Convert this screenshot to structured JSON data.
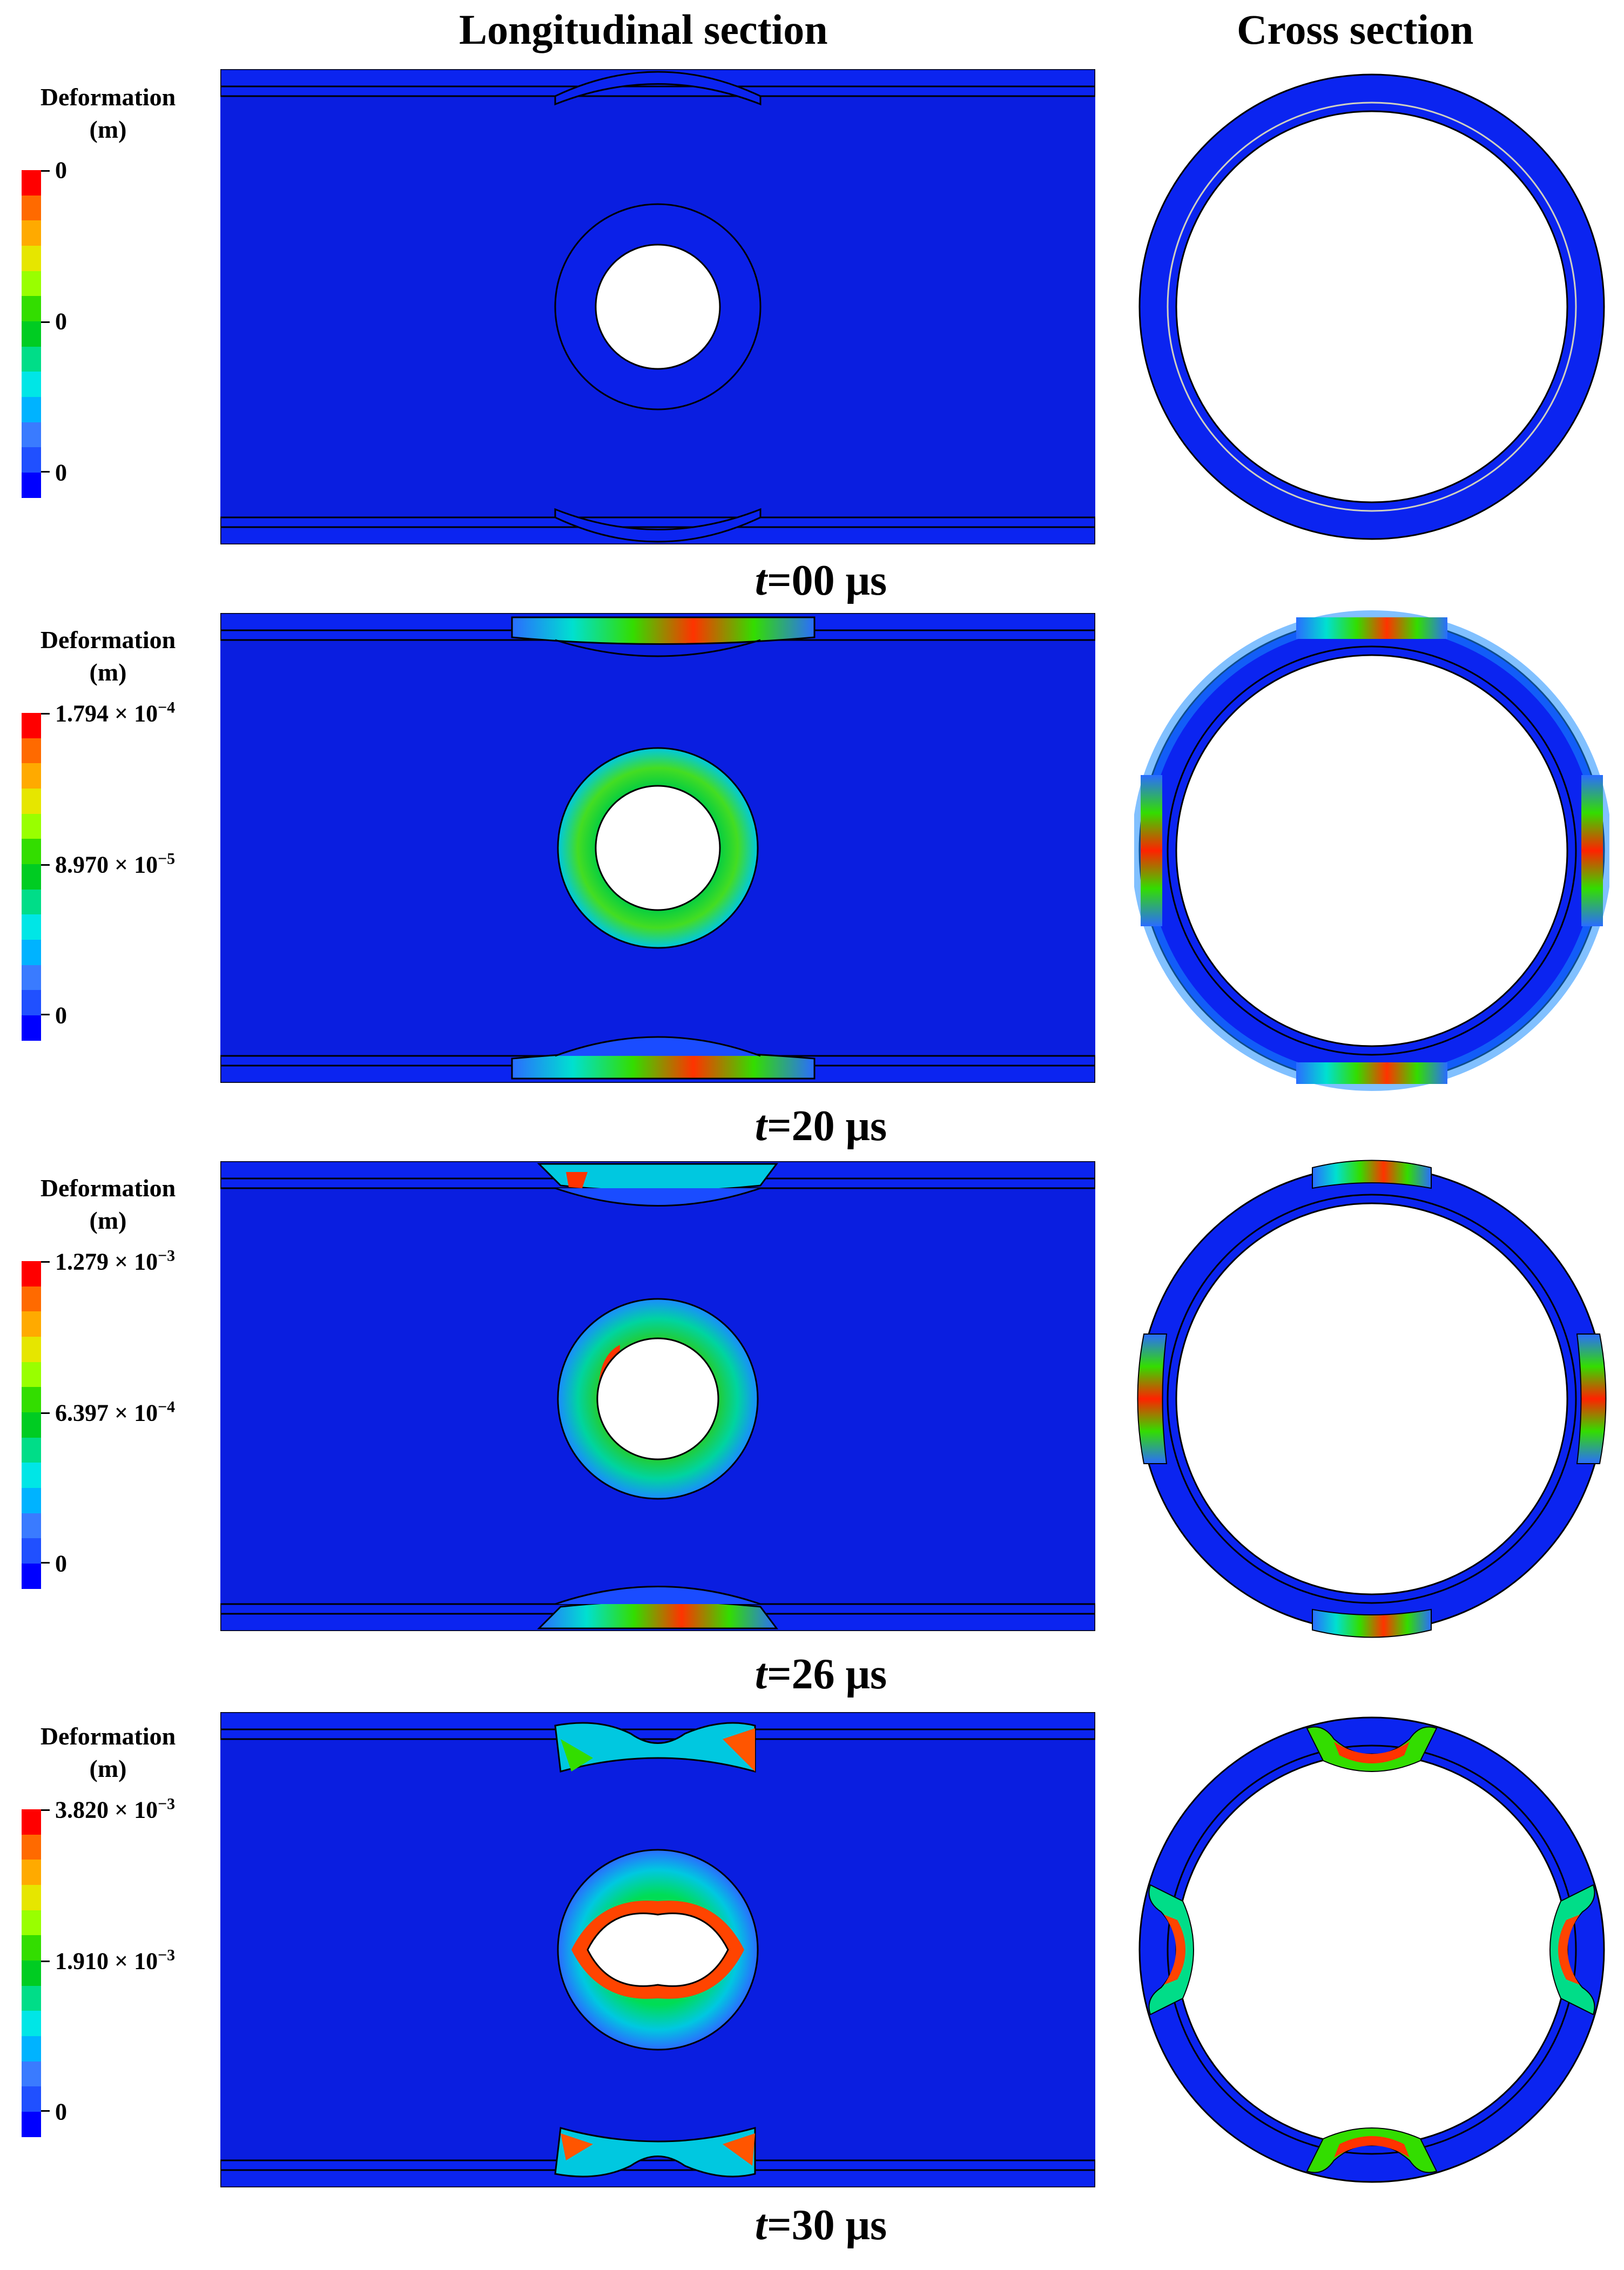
{
  "headers": {
    "longitudinal": "Longitudinal section",
    "cross": "Cross section"
  },
  "colorbar": {
    "colors": [
      "#ff0000",
      "#ff6a00",
      "#ffaa00",
      "#e6e600",
      "#99ff00",
      "#33dd00",
      "#00cc22",
      "#00dd88",
      "#00e6e6",
      "#00b3ff",
      "#3a7bff",
      "#2050ff",
      "#0000ff"
    ]
  },
  "frames": [
    {
      "time": "00 μs",
      "time_prefix": "t",
      "legend_title_1": "Deformation",
      "legend_title_2": "(m)",
      "max_label": "0",
      "mid_label": "0",
      "min_label": "0"
    },
    {
      "time": "20 μs",
      "time_prefix": "t",
      "legend_title_1": "Deformation",
      "legend_title_2": "(m)",
      "max_label": "1.794 × 10",
      "max_exp": "−4",
      "mid_label": "8.970 × 10",
      "mid_exp": "−5",
      "min_label": "0"
    },
    {
      "time": "26 μs",
      "time_prefix": "t",
      "legend_title_1": "Deformation",
      "legend_title_2": "(m)",
      "max_label": "1.279 × 10",
      "max_exp": "−3",
      "mid_label": "6.397 × 10",
      "mid_exp": "−4",
      "min_label": "0"
    },
    {
      "time": "30 μs",
      "time_prefix": "t",
      "legend_title_1": "Deformation",
      "legend_title_2": "(m)",
      "max_label": "3.820 × 10",
      "max_exp": "−3",
      "mid_label": "1.910 × 10",
      "mid_exp": "−3",
      "min_label": "0"
    }
  ]
}
